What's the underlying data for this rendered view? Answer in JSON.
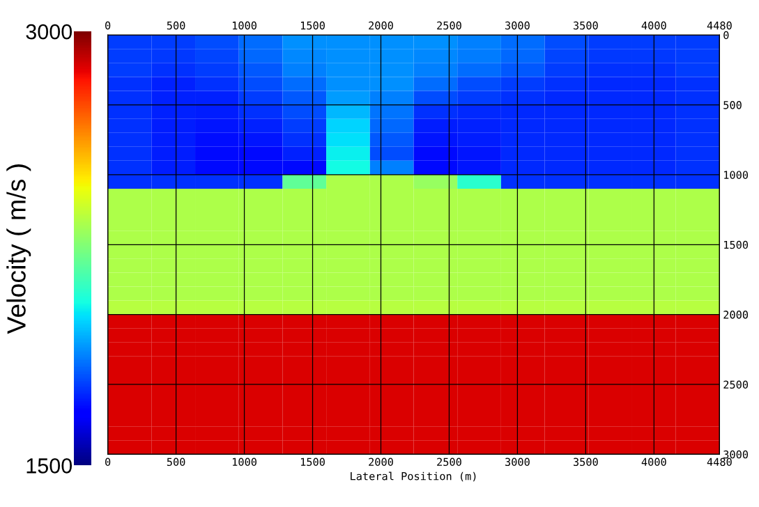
{
  "chart_data": {
    "type": "heatmap",
    "xlabel": "Lateral Position (m)",
    "clabel": "Velocity ( m/s )",
    "cells": [
      [
        1780,
        1780,
        1800,
        1850,
        1900,
        1900,
        1900,
        1900,
        1880,
        1850,
        1800,
        1780,
        1780,
        1780
      ],
      [
        1780,
        1770,
        1790,
        1840,
        1890,
        1900,
        1900,
        1890,
        1870,
        1840,
        1790,
        1770,
        1770,
        1780
      ],
      [
        1780,
        1760,
        1780,
        1820,
        1880,
        1900,
        1900,
        1880,
        1850,
        1820,
        1780,
        1760,
        1760,
        1780
      ],
      [
        1760,
        1740,
        1760,
        1800,
        1850,
        1900,
        1900,
        1850,
        1800,
        1780,
        1760,
        1750,
        1750,
        1760
      ],
      [
        1760,
        1740,
        1740,
        1780,
        1820,
        1920,
        1880,
        1800,
        1780,
        1760,
        1750,
        1750,
        1750,
        1760
      ],
      [
        1760,
        1740,
        1730,
        1760,
        1800,
        1960,
        1860,
        1760,
        1750,
        1750,
        1750,
        1750,
        1750,
        1760
      ],
      [
        1760,
        1730,
        1720,
        1740,
        1780,
        2000,
        1840,
        1730,
        1740,
        1750,
        1750,
        1750,
        1750,
        1760
      ],
      [
        1760,
        1730,
        1710,
        1720,
        1760,
        2020,
        1820,
        1720,
        1730,
        1750,
        1750,
        1750,
        1750,
        1760
      ],
      [
        1760,
        1730,
        1700,
        1700,
        1740,
        2040,
        1800,
        1700,
        1720,
        1750,
        1750,
        1750,
        1750,
        1760
      ],
      [
        1760,
        1730,
        1700,
        1700,
        1700,
        2060,
        1880,
        1700,
        1720,
        1750,
        1750,
        1750,
        1750,
        1760
      ],
      [
        1760,
        1760,
        1760,
        1760,
        2200,
        2340,
        2340,
        2300,
        2100,
        1760,
        1760,
        1760,
        1760,
        1760
      ],
      [
        2340,
        2340,
        2340,
        2340,
        2340,
        2340,
        2340,
        2340,
        2340,
        2340,
        2340,
        2340,
        2340,
        2340
      ],
      [
        2340,
        2340,
        2340,
        2340,
        2340,
        2340,
        2340,
        2340,
        2340,
        2340,
        2340,
        2340,
        2340,
        2340
      ],
      [
        2340,
        2340,
        2340,
        2340,
        2340,
        2340,
        2340,
        2340,
        2340,
        2340,
        2340,
        2340,
        2340,
        2340
      ],
      [
        2340,
        2340,
        2340,
        2340,
        2340,
        2340,
        2340,
        2340,
        2340,
        2340,
        2340,
        2340,
        2340,
        2340
      ],
      [
        2340,
        2340,
        2340,
        2340,
        2340,
        2340,
        2340,
        2340,
        2340,
        2340,
        2340,
        2340,
        2340,
        2340
      ],
      [
        2340,
        2340,
        2340,
        2340,
        2340,
        2340,
        2340,
        2340,
        2340,
        2340,
        2340,
        2340,
        2340,
        2340
      ],
      [
        2340,
        2340,
        2340,
        2340,
        2340,
        2340,
        2340,
        2340,
        2340,
        2340,
        2340,
        2340,
        2340,
        2340
      ],
      [
        2340,
        2340,
        2340,
        2340,
        2340,
        2340,
        2340,
        2340,
        2340,
        2340,
        2340,
        2340,
        2340,
        2340
      ],
      [
        2360,
        2360,
        2360,
        2360,
        2360,
        2360,
        2360,
        2360,
        2360,
        2360,
        2360,
        2360,
        2360,
        2360
      ],
      [
        2880,
        2880,
        2880,
        2880,
        2880,
        2880,
        2880,
        2880,
        2880,
        2880,
        2880,
        2880,
        2880,
        2880
      ],
      [
        2880,
        2880,
        2880,
        2880,
        2880,
        2880,
        2880,
        2880,
        2880,
        2880,
        2880,
        2880,
        2880,
        2880
      ],
      [
        2880,
        2880,
        2880,
        2880,
        2880,
        2880,
        2880,
        2880,
        2880,
        2880,
        2880,
        2880,
        2880,
        2880
      ],
      [
        2880,
        2880,
        2880,
        2880,
        2880,
        2880,
        2880,
        2880,
        2880,
        2880,
        2880,
        2880,
        2880,
        2880
      ],
      [
        2880,
        2880,
        2880,
        2880,
        2880,
        2880,
        2880,
        2880,
        2880,
        2880,
        2880,
        2880,
        2880,
        2880
      ],
      [
        2880,
        2880,
        2880,
        2880,
        2880,
        2880,
        2880,
        2880,
        2880,
        2880,
        2880,
        2880,
        2880,
        2880
      ],
      [
        2880,
        2880,
        2880,
        2880,
        2880,
        2880,
        2880,
        2880,
        2880,
        2880,
        2880,
        2880,
        2880,
        2880
      ],
      [
        2880,
        2880,
        2880,
        2880,
        2880,
        2880,
        2880,
        2880,
        2880,
        2880,
        2880,
        2880,
        2880,
        2880
      ],
      [
        2880,
        2880,
        2880,
        2880,
        2880,
        2880,
        2880,
        2880,
        2880,
        2880,
        2880,
        2880,
        2880,
        2880
      ],
      [
        2880,
        2880,
        2880,
        2880,
        2880,
        2880,
        2880,
        2880,
        2880,
        2880,
        2880,
        2880,
        2880,
        2880
      ]
    ],
    "clim": [
      1500,
      3000
    ],
    "cticks": [
      1500,
      3000
    ],
    "xlim": [
      0,
      4480
    ],
    "xticks": [
      0,
      500,
      1000,
      1500,
      2000,
      2500,
      3000,
      3500,
      4000,
      4480
    ],
    "x2lim": [
      0,
      4480
    ],
    "x2ticks": [
      0,
      500,
      1000,
      1500,
      2000,
      2500,
      3000,
      3500,
      4000,
      4480
    ],
    "ylim": [
      3000,
      0
    ],
    "yticks": [
      0,
      500,
      1000,
      1500,
      2000,
      2500,
      3000
    ],
    "grid": true
  }
}
